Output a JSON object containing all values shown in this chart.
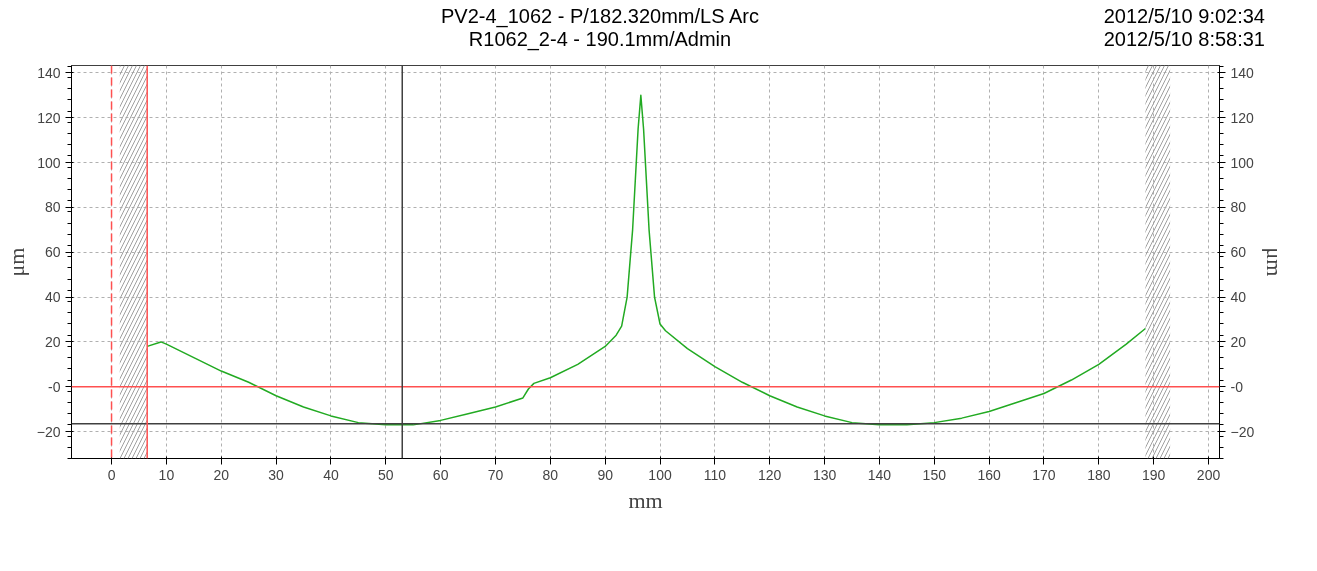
{
  "chart_data": {
    "type": "line",
    "title": "PV2-4_1062 - P/182.320mm/LS Arc",
    "subtitle": "R1062_2-4 - 190.1mm/Admin",
    "xlabel": "mm",
    "ylabel": "μm",
    "y2label": "μm",
    "annotations": [
      "2012/5/10 9:02:34",
      "2012/5/10 8:58:31"
    ],
    "xlim": [
      -7.3,
      202
    ],
    "xticks": [
      0,
      10,
      20,
      30,
      40,
      50,
      60,
      70,
      80,
      90,
      100,
      110,
      120,
      130,
      140,
      150,
      160,
      170,
      180,
      190,
      200
    ],
    "ylim": [
      -32,
      143.3
    ],
    "yticks": [
      -20,
      {
        "value": 0,
        "label": "-0"
      },
      20,
      40,
      60,
      80,
      100,
      120,
      140
    ],
    "y2lim": [
      -32,
      143.3
    ],
    "y2ticks": [
      -20,
      {
        "value": 0,
        "label": "-0"
      },
      20,
      40,
      60,
      80,
      100,
      120,
      140
    ],
    "grid": true,
    "marker": "none",
    "line_style": "solid",
    "series": [
      {
        "color": "#22aa22",
        "x": [
          6.5,
          9,
          10,
          15,
          20,
          25,
          30,
          35,
          40,
          45,
          50,
          53,
          55,
          60,
          65,
          70,
          75,
          76,
          77,
          80,
          85,
          90,
          92,
          93,
          94,
          95,
          96,
          96.5,
          97,
          98,
          99,
          100,
          101,
          105,
          110,
          115,
          120,
          125,
          130,
          135,
          140,
          145,
          150,
          155,
          160,
          165,
          170,
          175,
          180,
          185,
          188.5
        ],
        "values": [
          18,
          20,
          19,
          13,
          7,
          2,
          -4,
          -9,
          -13,
          -16,
          -17,
          -17,
          -17,
          -15,
          -12,
          -9,
          -5,
          -1,
          1.5,
          4,
          10,
          18,
          23,
          27,
          40,
          70,
          115,
          130,
          115,
          70,
          40,
          28,
          25,
          17,
          9,
          2,
          -4,
          -9,
          -13,
          -16,
          -17,
          -17,
          -16,
          -14,
          -11,
          -7,
          -3,
          3,
          10,
          19,
          26
        ]
      }
    ],
    "ref_lines": [
      {
        "axis": "y",
        "value": 0,
        "color": "#ff5050",
        "line_style": "solid"
      },
      {
        "axis": "y",
        "value": -16.5,
        "color": "#404040",
        "line_style": "solid"
      },
      {
        "axis": "x",
        "value": 53,
        "color": "#404040",
        "line_style": "solid"
      },
      {
        "axis": "x",
        "value": 0,
        "color": "#ff5050",
        "line_style": "dashed"
      },
      {
        "axis": "x",
        "value": 6.5,
        "color": "#ff5050",
        "line_style": "solid"
      }
    ],
    "bands": [
      {
        "axis": "x",
        "from": 1.5,
        "to": 6.5,
        "color": "#a0a0a0"
      },
      {
        "axis": "x",
        "from": 188.5,
        "to": 193,
        "color": "#a0a0a0"
      }
    ]
  }
}
